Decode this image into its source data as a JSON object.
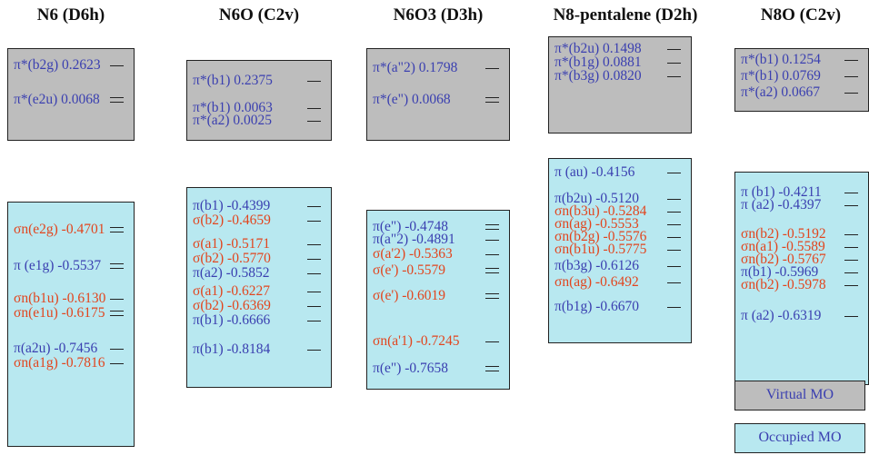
{
  "colors": {
    "virtual_fill": "#bdbdbd",
    "occupied_fill": "#b8e8f0",
    "pi_text": "#3a3fb0",
    "sigma_text": "#e2451e"
  },
  "legend": {
    "virtual": "Virtual MO",
    "occupied": "Occupied MO"
  },
  "columns": [
    {
      "title": "N6 (D6h)",
      "virtual": [
        {
          "label": "π*(b2g) 0.2623",
          "kind": "pi",
          "ticks": 1
        },
        {
          "label": "π*(e2u) 0.0068",
          "kind": "pi",
          "ticks": 2
        }
      ],
      "occupied": [
        {
          "label": "σn(e2g) -0.4701",
          "kind": "sigma",
          "ticks": 2
        },
        {
          "label": "π (e1g) -0.5537",
          "kind": "pi",
          "ticks": 2
        },
        {
          "label": "σn(b1u) -0.6130",
          "kind": "sigma",
          "ticks": 1
        },
        {
          "label": "σn(e1u) -0.6175",
          "kind": "sigma",
          "ticks": 2
        },
        {
          "label": "π(a2u) -0.7456",
          "kind": "pi",
          "ticks": 1
        },
        {
          "label": "σn(a1g) -0.7816",
          "kind": "sigma",
          "ticks": 1
        }
      ]
    },
    {
      "title": "N6O (C2v)",
      "virtual": [
        {
          "label": "π*(b1) 0.2375",
          "kind": "pi",
          "ticks": 1
        },
        {
          "label": "π*(b1) 0.0063",
          "kind": "pi",
          "ticks": 1
        },
        {
          "label": "π*(a2) 0.0025",
          "kind": "pi",
          "ticks": 1
        }
      ],
      "occupied": [
        {
          "label": "π(b1) -0.4399",
          "kind": "pi",
          "ticks": 1
        },
        {
          "label": "σ(b2) -0.4659",
          "kind": "sigma",
          "ticks": 1
        },
        {
          "label": "σ(a1) -0.5171",
          "kind": "sigma",
          "ticks": 1
        },
        {
          "label": "σ(b2) -0.5770",
          "kind": "sigma",
          "ticks": 1
        },
        {
          "label": "π(a2) -0.5852",
          "kind": "pi",
          "ticks": 1
        },
        {
          "label": "σ(a1) -0.6227",
          "kind": "sigma",
          "ticks": 1
        },
        {
          "label": "σ(b2) -0.6369",
          "kind": "sigma",
          "ticks": 1
        },
        {
          "label": "π(b1) -0.6666",
          "kind": "pi",
          "ticks": 1
        },
        {
          "label": "π(b1) -0.8184",
          "kind": "pi",
          "ticks": 1
        }
      ]
    },
    {
      "title": "N6O3 (D3h)",
      "virtual": [
        {
          "label": "π*(a\"2) 0.1798",
          "kind": "pi",
          "ticks": 1
        },
        {
          "label": "π*(e\") 0.0068",
          "kind": "pi",
          "ticks": 2
        }
      ],
      "occupied": [
        {
          "label": "π(e\") -0.4748",
          "kind": "pi",
          "ticks": 2
        },
        {
          "label": "π(a\"2) -0.4891",
          "kind": "pi",
          "ticks": 1
        },
        {
          "label": "σ(a'2) -0.5363",
          "kind": "sigma",
          "ticks": 1
        },
        {
          "label": "σ(e') -0.5579",
          "kind": "sigma",
          "ticks": 2
        },
        {
          "label": "σ(e') -0.6019",
          "kind": "sigma",
          "ticks": 2
        },
        {
          "label": "σn(a'1) -0.7245",
          "kind": "sigma",
          "ticks": 1
        },
        {
          "label": "π(e\") -0.7658",
          "kind": "pi",
          "ticks": 2
        }
      ]
    },
    {
      "title": "N8-pentalene (D2h)",
      "virtual": [
        {
          "label": "π*(b2u) 0.1498",
          "kind": "pi",
          "ticks": 1
        },
        {
          "label": "π*(b1g) 0.0881",
          "kind": "pi",
          "ticks": 1
        },
        {
          "label": "π*(b3g) 0.0820",
          "kind": "pi",
          "ticks": 1
        }
      ],
      "occupied": [
        {
          "label": "π (au) -0.4156",
          "kind": "pi",
          "ticks": 1
        },
        {
          "label": "π(b2u) -0.5120",
          "kind": "pi",
          "ticks": 1
        },
        {
          "label": "σn(b3u) -0.5284",
          "kind": "sigma",
          "ticks": 1
        },
        {
          "label": "σn(ag) -0.5553",
          "kind": "sigma",
          "ticks": 1
        },
        {
          "label": "σn(b2g) -0.5576",
          "kind": "sigma",
          "ticks": 1
        },
        {
          "label": "σn(b1u) -0.5775",
          "kind": "sigma",
          "ticks": 1
        },
        {
          "label": "π(b3g) -0.6126",
          "kind": "pi",
          "ticks": 1
        },
        {
          "label": "σn(ag) -0.6492",
          "kind": "sigma",
          "ticks": 1
        },
        {
          "label": "π(b1g) -0.6670",
          "kind": "pi",
          "ticks": 1
        }
      ]
    },
    {
      "title": "N8O (C2v)",
      "virtual": [
        {
          "label": "π*(b1) 0.1254",
          "kind": "pi",
          "ticks": 1
        },
        {
          "label": "π*(b1) 0.0769",
          "kind": "pi",
          "ticks": 1
        },
        {
          "label": "π*(a2) 0.0667",
          "kind": "pi",
          "ticks": 1
        }
      ],
      "occupied": [
        {
          "label": "π (b1) -0.4211",
          "kind": "pi",
          "ticks": 1
        },
        {
          "label": "π (a2) -0.4397",
          "kind": "pi",
          "ticks": 1
        },
        {
          "label": "σn(b2) -0.5192",
          "kind": "sigma",
          "ticks": 1
        },
        {
          "label": "σn(a1) -0.5589",
          "kind": "sigma",
          "ticks": 1
        },
        {
          "label": "σn(b2) -0.5767",
          "kind": "sigma",
          "ticks": 1
        },
        {
          "label": "π(b1) -0.5969",
          "kind": "pi",
          "ticks": 1
        },
        {
          "label": "σn(b2) -0.5978",
          "kind": "sigma",
          "ticks": 1
        },
        {
          "label": "π (a2) -0.6319",
          "kind": "pi",
          "ticks": 1
        }
      ]
    }
  ]
}
